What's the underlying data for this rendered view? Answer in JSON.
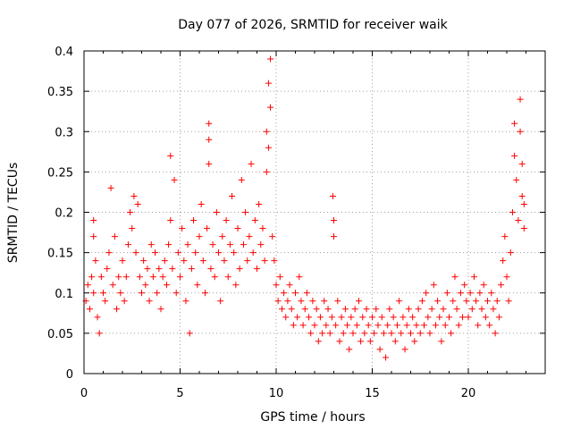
{
  "chart_data": {
    "type": "scatter",
    "title": "Day 077 of 2026, SRMTID for receiver waik",
    "xlabel": "GPS time / hours",
    "ylabel": "SRMTID / TECUs",
    "xlim": [
      0,
      24
    ],
    "ylim": [
      0,
      0.4
    ],
    "x_ticks": [
      0,
      5,
      10,
      15,
      20
    ],
    "x_tick_labels": [
      "0",
      "5",
      "10",
      "15",
      "20"
    ],
    "y_ticks": [
      0,
      0.05,
      0.1,
      0.15,
      0.2,
      0.25,
      0.3,
      0.35,
      0.4
    ],
    "y_tick_labels": [
      "0",
      "0.05",
      "0.1",
      "0.15",
      "0.2",
      "0.25",
      "0.3",
      "0.35",
      "0.4"
    ],
    "grid": true,
    "marker": "+",
    "color": "#ff0000",
    "series": [
      {
        "name": "SRMTID",
        "points": [
          [
            0.1,
            0.09
          ],
          [
            0.2,
            0.11
          ],
          [
            0.3,
            0.08
          ],
          [
            0.4,
            0.12
          ],
          [
            0.5,
            0.1
          ],
          [
            0.5,
            0.17
          ],
          [
            0.5,
            0.19
          ],
          [
            0.6,
            0.14
          ],
          [
            0.7,
            0.07
          ],
          [
            0.8,
            0.05
          ],
          [
            0.9,
            0.12
          ],
          [
            1.0,
            0.1
          ],
          [
            1.1,
            0.09
          ],
          [
            1.2,
            0.13
          ],
          [
            1.3,
            0.15
          ],
          [
            1.4,
            0.23
          ],
          [
            1.5,
            0.11
          ],
          [
            1.6,
            0.17
          ],
          [
            1.7,
            0.08
          ],
          [
            1.8,
            0.12
          ],
          [
            1.9,
            0.1
          ],
          [
            2.0,
            0.14
          ],
          [
            2.1,
            0.09
          ],
          [
            2.2,
            0.12
          ],
          [
            2.3,
            0.16
          ],
          [
            2.4,
            0.2
          ],
          [
            2.5,
            0.18
          ],
          [
            2.6,
            0.22
          ],
          [
            2.7,
            0.15
          ],
          [
            2.8,
            0.21
          ],
          [
            2.9,
            0.12
          ],
          [
            3.0,
            0.1
          ],
          [
            3.1,
            0.14
          ],
          [
            3.2,
            0.11
          ],
          [
            3.3,
            0.13
          ],
          [
            3.4,
            0.09
          ],
          [
            3.5,
            0.16
          ],
          [
            3.6,
            0.12
          ],
          [
            3.7,
            0.15
          ],
          [
            3.8,
            0.1
          ],
          [
            3.9,
            0.13
          ],
          [
            4.0,
            0.08
          ],
          [
            4.1,
            0.12
          ],
          [
            4.2,
            0.14
          ],
          [
            4.3,
            0.11
          ],
          [
            4.4,
            0.16
          ],
          [
            4.5,
            0.19
          ],
          [
            4.5,
            0.27
          ],
          [
            4.6,
            0.13
          ],
          [
            4.7,
            0.24
          ],
          [
            4.8,
            0.1
          ],
          [
            4.9,
            0.15
          ],
          [
            5.0,
            0.12
          ],
          [
            5.1,
            0.18
          ],
          [
            5.2,
            0.14
          ],
          [
            5.3,
            0.09
          ],
          [
            5.4,
            0.16
          ],
          [
            5.5,
            0.05
          ],
          [
            5.6,
            0.13
          ],
          [
            5.7,
            0.19
          ],
          [
            5.8,
            0.15
          ],
          [
            5.9,
            0.11
          ],
          [
            6.0,
            0.17
          ],
          [
            6.1,
            0.21
          ],
          [
            6.2,
            0.14
          ],
          [
            6.3,
            0.1
          ],
          [
            6.4,
            0.18
          ],
          [
            6.5,
            0.31
          ],
          [
            6.5,
            0.29
          ],
          [
            6.5,
            0.26
          ],
          [
            6.6,
            0.13
          ],
          [
            6.7,
            0.16
          ],
          [
            6.8,
            0.12
          ],
          [
            6.9,
            0.2
          ],
          [
            7.0,
            0.15
          ],
          [
            7.1,
            0.09
          ],
          [
            7.2,
            0.17
          ],
          [
            7.3,
            0.14
          ],
          [
            7.4,
            0.19
          ],
          [
            7.5,
            0.12
          ],
          [
            7.6,
            0.16
          ],
          [
            7.7,
            0.22
          ],
          [
            7.8,
            0.15
          ],
          [
            7.9,
            0.11
          ],
          [
            8.0,
            0.18
          ],
          [
            8.1,
            0.13
          ],
          [
            8.2,
            0.24
          ],
          [
            8.3,
            0.16
          ],
          [
            8.4,
            0.2
          ],
          [
            8.5,
            0.14
          ],
          [
            8.6,
            0.17
          ],
          [
            8.7,
            0.26
          ],
          [
            8.8,
            0.15
          ],
          [
            8.9,
            0.19
          ],
          [
            9.0,
            0.13
          ],
          [
            9.1,
            0.21
          ],
          [
            9.2,
            0.16
          ],
          [
            9.3,
            0.18
          ],
          [
            9.4,
            0.14
          ],
          [
            9.5,
            0.25
          ],
          [
            9.5,
            0.3
          ],
          [
            9.6,
            0.28
          ],
          [
            9.6,
            0.36
          ],
          [
            9.7,
            0.39
          ],
          [
            9.7,
            0.33
          ],
          [
            9.8,
            0.17
          ],
          [
            9.9,
            0.14
          ],
          [
            10.0,
            0.11
          ],
          [
            10.1,
            0.09
          ],
          [
            10.2,
            0.12
          ],
          [
            10.3,
            0.08
          ],
          [
            10.4,
            0.1
          ],
          [
            10.5,
            0.07
          ],
          [
            10.6,
            0.09
          ],
          [
            10.7,
            0.11
          ],
          [
            10.8,
            0.08
          ],
          [
            10.9,
            0.06
          ],
          [
            11.0,
            0.1
          ],
          [
            11.1,
            0.07
          ],
          [
            11.2,
            0.12
          ],
          [
            11.3,
            0.09
          ],
          [
            11.4,
            0.06
          ],
          [
            11.5,
            0.08
          ],
          [
            11.6,
            0.1
          ],
          [
            11.7,
            0.07
          ],
          [
            11.8,
            0.05
          ],
          [
            11.9,
            0.09
          ],
          [
            12.0,
            0.06
          ],
          [
            12.1,
            0.08
          ],
          [
            12.2,
            0.04
          ],
          [
            12.3,
            0.07
          ],
          [
            12.4,
            0.05
          ],
          [
            12.5,
            0.09
          ],
          [
            12.6,
            0.06
          ],
          [
            12.7,
            0.08
          ],
          [
            12.8,
            0.05
          ],
          [
            12.9,
            0.07
          ],
          [
            12.95,
            0.22
          ],
          [
            13.0,
            0.19
          ],
          [
            13.0,
            0.17
          ],
          [
            13.1,
            0.06
          ],
          [
            13.2,
            0.09
          ],
          [
            13.3,
            0.04
          ],
          [
            13.4,
            0.07
          ],
          [
            13.5,
            0.05
          ],
          [
            13.6,
            0.08
          ],
          [
            13.7,
            0.06
          ],
          [
            13.8,
            0.03
          ],
          [
            13.9,
            0.07
          ],
          [
            14.0,
            0.05
          ],
          [
            14.1,
            0.08
          ],
          [
            14.2,
            0.06
          ],
          [
            14.3,
            0.09
          ],
          [
            14.4,
            0.04
          ],
          [
            14.5,
            0.07
          ],
          [
            14.6,
            0.05
          ],
          [
            14.7,
            0.08
          ],
          [
            14.8,
            0.06
          ],
          [
            14.9,
            0.04
          ],
          [
            15.0,
            0.07
          ],
          [
            15.1,
            0.05
          ],
          [
            15.2,
            0.08
          ],
          [
            15.3,
            0.06
          ],
          [
            15.4,
            0.03
          ],
          [
            15.5,
            0.07
          ],
          [
            15.6,
            0.05
          ],
          [
            15.7,
            0.02
          ],
          [
            15.8,
            0.06
          ],
          [
            15.9,
            0.08
          ],
          [
            16.0,
            0.05
          ],
          [
            16.1,
            0.07
          ],
          [
            16.2,
            0.04
          ],
          [
            16.3,
            0.06
          ],
          [
            16.4,
            0.09
          ],
          [
            16.5,
            0.05
          ],
          [
            16.6,
            0.07
          ],
          [
            16.7,
            0.03
          ],
          [
            16.8,
            0.06
          ],
          [
            16.9,
            0.08
          ],
          [
            17.0,
            0.05
          ],
          [
            17.1,
            0.07
          ],
          [
            17.2,
            0.04
          ],
          [
            17.3,
            0.06
          ],
          [
            17.4,
            0.08
          ],
          [
            17.5,
            0.05
          ],
          [
            17.6,
            0.09
          ],
          [
            17.7,
            0.06
          ],
          [
            17.8,
            0.1
          ],
          [
            17.9,
            0.07
          ],
          [
            18.0,
            0.05
          ],
          [
            18.1,
            0.08
          ],
          [
            18.2,
            0.11
          ],
          [
            18.3,
            0.06
          ],
          [
            18.4,
            0.09
          ],
          [
            18.5,
            0.07
          ],
          [
            18.6,
            0.04
          ],
          [
            18.7,
            0.08
          ],
          [
            18.8,
            0.06
          ],
          [
            18.9,
            0.1
          ],
          [
            19.0,
            0.07
          ],
          [
            19.1,
            0.05
          ],
          [
            19.2,
            0.09
          ],
          [
            19.3,
            0.12
          ],
          [
            19.4,
            0.08
          ],
          [
            19.5,
            0.06
          ],
          [
            19.6,
            0.1
          ],
          [
            19.7,
            0.07
          ],
          [
            19.8,
            0.11
          ],
          [
            19.9,
            0.09
          ],
          [
            20.0,
            0.07
          ],
          [
            20.1,
            0.1
          ],
          [
            20.2,
            0.08
          ],
          [
            20.3,
            0.12
          ],
          [
            20.4,
            0.09
          ],
          [
            20.5,
            0.06
          ],
          [
            20.6,
            0.1
          ],
          [
            20.7,
            0.08
          ],
          [
            20.8,
            0.11
          ],
          [
            20.9,
            0.07
          ],
          [
            21.0,
            0.09
          ],
          [
            21.1,
            0.06
          ],
          [
            21.2,
            0.1
          ],
          [
            21.3,
            0.08
          ],
          [
            21.4,
            0.05
          ],
          [
            21.5,
            0.09
          ],
          [
            21.6,
            0.07
          ],
          [
            21.7,
            0.11
          ],
          [
            21.8,
            0.14
          ],
          [
            21.9,
            0.17
          ],
          [
            22.0,
            0.12
          ],
          [
            22.1,
            0.09
          ],
          [
            22.2,
            0.15
          ],
          [
            22.3,
            0.2
          ],
          [
            22.4,
            0.27
          ],
          [
            22.4,
            0.31
          ],
          [
            22.5,
            0.24
          ],
          [
            22.6,
            0.19
          ],
          [
            22.7,
            0.34
          ],
          [
            22.7,
            0.3
          ],
          [
            22.8,
            0.22
          ],
          [
            22.8,
            0.26
          ],
          [
            22.9,
            0.21
          ],
          [
            22.9,
            0.18
          ]
        ]
      }
    ]
  }
}
